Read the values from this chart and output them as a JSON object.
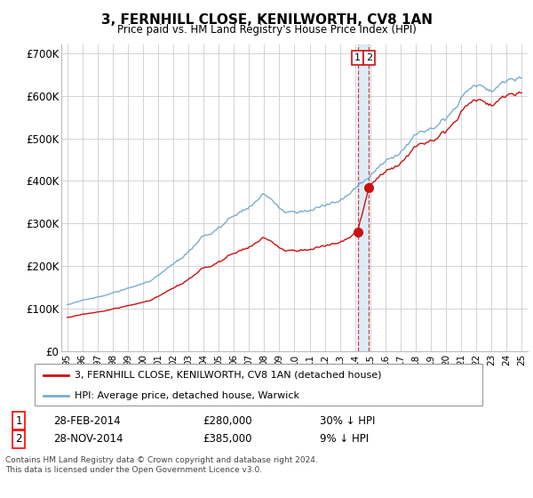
{
  "title": "3, FERNHILL CLOSE, KENILWORTH, CV8 1AN",
  "subtitle": "Price paid vs. HM Land Registry's House Price Index (HPI)",
  "ylim": [
    0,
    720000
  ],
  "yticks": [
    0,
    100000,
    200000,
    300000,
    400000,
    500000,
    600000,
    700000
  ],
  "ytick_labels": [
    "£0",
    "£100K",
    "£200K",
    "£300K",
    "£400K",
    "£500K",
    "£600K",
    "£700K"
  ],
  "hpi_color": "#7aadcf",
  "price_color": "#cc1111",
  "t1_idx": 230,
  "t1_price": 280000,
  "t2_idx": 239,
  "t2_price": 385000,
  "legend_line1": "3, FERNHILL CLOSE, KENILWORTH, CV8 1AN (detached house)",
  "legend_line2": "HPI: Average price, detached house, Warwick",
  "footnote1": "Contains HM Land Registry data © Crown copyright and database right 2024.",
  "footnote2": "This data is licensed under the Open Government Licence v3.0.",
  "grid_color": "#cccccc",
  "background_color": "#ffffff",
  "highlight_color": "#d0e4f5"
}
